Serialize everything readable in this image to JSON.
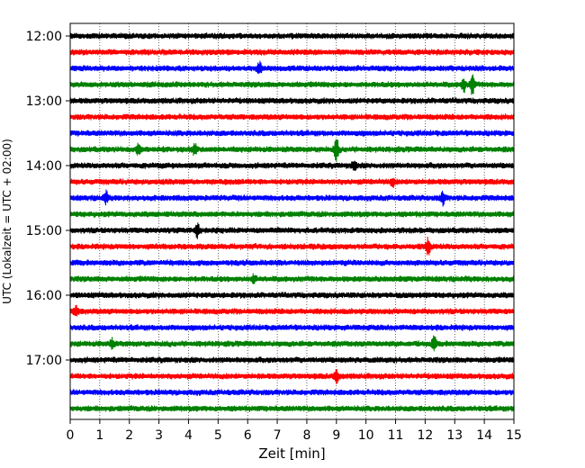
{
  "chart_data": {
    "type": "line",
    "title": "",
    "xlabel": "Zeit  [min]",
    "ylabel": "UTC (Lokalzeit = UTC + 02:00)",
    "xlim": [
      0,
      15
    ],
    "x_ticks": [
      "0",
      "1",
      "2",
      "3",
      "4",
      "5",
      "6",
      "7",
      "8",
      "9",
      "10",
      "11",
      "12",
      "13",
      "14",
      "15"
    ],
    "y_ticks": [
      {
        "label": "12:00",
        "trace": 0
      },
      {
        "label": "13:00",
        "trace": 4
      },
      {
        "label": "14:00",
        "trace": 8
      },
      {
        "label": "15:00",
        "trace": 12
      },
      {
        "label": "16:00",
        "trace": 16
      },
      {
        "label": "17:00",
        "trace": 20
      }
    ],
    "grid": "vertical dotted",
    "trace_interval_minutes": 15,
    "colors": [
      "#000000",
      "#ff0000",
      "#0000ff",
      "#008000"
    ],
    "traces": [
      {
        "start": "12:00",
        "color": "#000000",
        "events": []
      },
      {
        "start": "12:15",
        "color": "#ff0000",
        "events": []
      },
      {
        "start": "12:30",
        "color": "#0000ff",
        "events": [
          {
            "t": 6.4,
            "amp": 1.4
          }
        ]
      },
      {
        "start": "12:45",
        "color": "#008000",
        "events": [
          {
            "t": 13.3,
            "amp": 1.4
          },
          {
            "t": 13.6,
            "amp": 2.2
          }
        ]
      },
      {
        "start": "13:00",
        "color": "#000000",
        "events": []
      },
      {
        "start": "13:15",
        "color": "#ff0000",
        "events": []
      },
      {
        "start": "13:30",
        "color": "#0000ff",
        "events": []
      },
      {
        "start": "13:45",
        "color": "#008000",
        "events": [
          {
            "t": 2.3,
            "amp": 1.0
          },
          {
            "t": 4.2,
            "amp": 1.2
          },
          {
            "t": 9.0,
            "amp": 2.6
          }
        ]
      },
      {
        "start": "14:00",
        "color": "#000000",
        "events": [
          {
            "t": 9.6,
            "amp": 1.0
          }
        ]
      },
      {
        "start": "14:15",
        "color": "#ff0000",
        "events": [
          {
            "t": 10.9,
            "amp": 0.8
          }
        ]
      },
      {
        "start": "14:30",
        "color": "#0000ff",
        "events": [
          {
            "t": 1.2,
            "amp": 1.3
          },
          {
            "t": 12.6,
            "amp": 1.4
          }
        ]
      },
      {
        "start": "14:45",
        "color": "#008000",
        "events": []
      },
      {
        "start": "15:00",
        "color": "#000000",
        "events": [
          {
            "t": 4.3,
            "amp": 1.6
          }
        ]
      },
      {
        "start": "15:15",
        "color": "#ff0000",
        "events": [
          {
            "t": 12.1,
            "amp": 1.8
          }
        ]
      },
      {
        "start": "15:30",
        "color": "#0000ff",
        "events": []
      },
      {
        "start": "15:45",
        "color": "#008000",
        "events": [
          {
            "t": 6.2,
            "amp": 0.8
          }
        ]
      },
      {
        "start": "16:00",
        "color": "#000000",
        "events": []
      },
      {
        "start": "16:15",
        "color": "#ff0000",
        "events": [
          {
            "t": 0.2,
            "amp": 1.2
          }
        ]
      },
      {
        "start": "16:30",
        "color": "#0000ff",
        "events": []
      },
      {
        "start": "16:45",
        "color": "#008000",
        "events": [
          {
            "t": 1.4,
            "amp": 0.9
          },
          {
            "t": 12.3,
            "amp": 1.4
          }
        ]
      },
      {
        "start": "17:00",
        "color": "#000000",
        "events": []
      },
      {
        "start": "17:15",
        "color": "#ff0000",
        "events": [
          {
            "t": 9.0,
            "amp": 1.5
          }
        ]
      },
      {
        "start": "17:30",
        "color": "#0000ff",
        "events": []
      },
      {
        "start": "17:45",
        "color": "#008000",
        "events": []
      }
    ]
  }
}
